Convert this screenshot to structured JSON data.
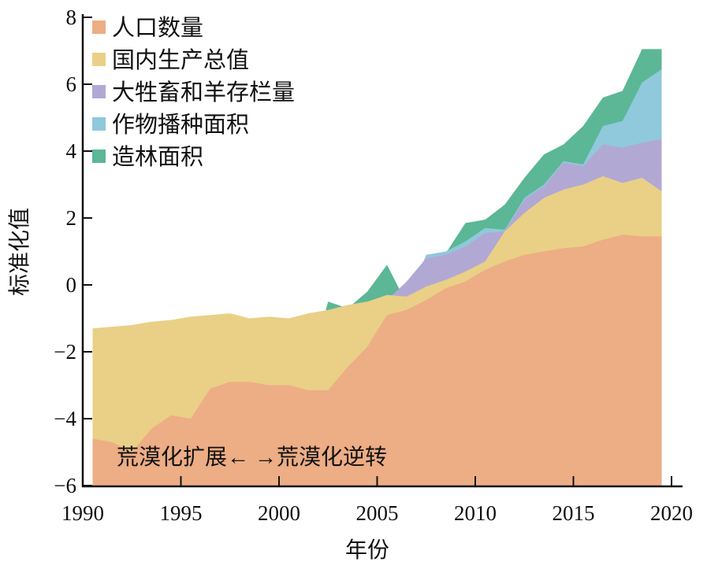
{
  "chart_data": {
    "type": "area",
    "title": "",
    "xlabel": "年份",
    "ylabel": "标准化值",
    "xlim": [
      1990,
      2020
    ],
    "ylim": [
      -6,
      8
    ],
    "xticks": [
      1990,
      1995,
      2000,
      2005,
      2010,
      2015,
      2020
    ],
    "yticks": [
      -6,
      -4,
      -2,
      0,
      2,
      4,
      6,
      8
    ],
    "ytick_labels": [
      "−6",
      "−4",
      "−2",
      "0",
      "2",
      "4",
      "6",
      "8"
    ],
    "grid": false,
    "legend_position": "top-left",
    "annotation": "荒漠化扩展← →荒漠化逆转",
    "x": [
      1990,
      1991,
      1992,
      1993,
      1994,
      1995,
      1996,
      1997,
      1998,
      1999,
      2000,
      2001,
      2002,
      2003,
      2004,
      2005,
      2006,
      2007,
      2008,
      2009,
      2010,
      2011,
      2012,
      2013,
      2014,
      2015,
      2016,
      2017,
      2018,
      2019
    ],
    "series": [
      {
        "name": "造林面积",
        "color": "#5BB795",
        "values": [
          -3.3,
          -3.45,
          -4.1,
          -3.4,
          -2.95,
          -3.0,
          -2.4,
          -2.85,
          -2.85,
          -2.95,
          -3.0,
          -2.65,
          -0.5,
          -0.7,
          -0.2,
          0.6,
          -0.55,
          0.7,
          0.95,
          1.85,
          1.95,
          2.4,
          3.2,
          3.9,
          4.2,
          4.75,
          5.6,
          5.8,
          7.05,
          7.05
        ]
      },
      {
        "name": "作物播种面积",
        "color": "#90C8DC",
        "values": [
          -3.3,
          -3.45,
          -4.1,
          -3.4,
          -2.95,
          -3.0,
          -2.4,
          -2.2,
          -2.45,
          -2.6,
          -2.55,
          -2.5,
          -2.0,
          -1.4,
          -0.6,
          -0.35,
          -0.5,
          0.9,
          1.0,
          1.3,
          1.7,
          1.65,
          2.6,
          3.0,
          3.7,
          3.6,
          4.75,
          4.9,
          6.05,
          6.45
        ]
      },
      {
        "name": "大牲畜和羊存栏量",
        "color": "#B2A8D4",
        "values": [
          -2.1,
          -2.05,
          -2.0,
          -1.9,
          -1.8,
          -1.75,
          -1.65,
          -1.6,
          -1.8,
          -1.75,
          -1.75,
          -1.55,
          -1.2,
          -1.0,
          -0.55,
          -0.45,
          0.1,
          0.8,
          0.9,
          1.15,
          1.55,
          1.6,
          2.55,
          2.95,
          3.65,
          3.55,
          4.2,
          4.1,
          4.25,
          4.35
        ]
      },
      {
        "name": "国内生产总值",
        "color": "#E9D086",
        "values": [
          -1.3,
          -1.25,
          -1.2,
          -1.1,
          -1.05,
          -0.95,
          -0.9,
          -0.85,
          -1.0,
          -0.95,
          -1.0,
          -0.85,
          -0.75,
          -0.6,
          -0.5,
          -0.3,
          -0.35,
          -0.05,
          0.15,
          0.4,
          0.7,
          1.6,
          2.15,
          2.6,
          2.85,
          3.0,
          3.25,
          3.05,
          3.2,
          2.8
        ]
      },
      {
        "name": "人口数量",
        "color": "#EDAD85",
        "values": [
          -4.6,
          -4.7,
          -5.0,
          -4.3,
          -3.9,
          -4.0,
          -3.1,
          -2.9,
          -2.9,
          -3.0,
          -3.0,
          -3.15,
          -3.15,
          -2.45,
          -1.85,
          -0.9,
          -0.75,
          -0.45,
          -0.1,
          0.1,
          0.45,
          0.7,
          0.9,
          1.0,
          1.1,
          1.15,
          1.35,
          1.5,
          1.45,
          1.45
        ]
      }
    ],
    "legend": [
      "人口数量",
      "国内生产总值",
      "大牲畜和羊存栏量",
      "作物播种面积",
      "造林面积"
    ]
  }
}
